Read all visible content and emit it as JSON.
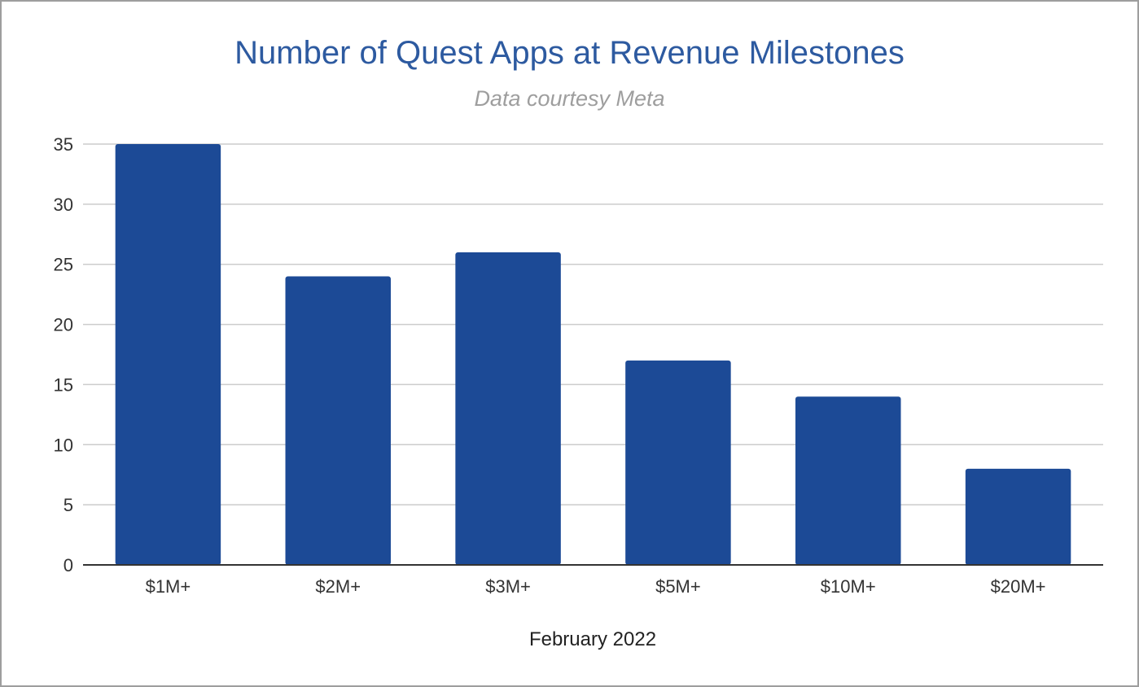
{
  "chart_data": {
    "type": "bar",
    "title": "Number of Quest Apps at Revenue Milestones",
    "subtitle": "Data courtesy Meta",
    "xlabel": "February 2022",
    "ylabel": "",
    "categories": [
      "$1M+",
      "$2M+",
      "$3M+",
      "$5M+",
      "$10M+",
      "$20M+"
    ],
    "values": [
      35,
      24,
      26,
      17,
      14,
      8
    ],
    "ylim": [
      0,
      35
    ],
    "yticks": [
      0,
      5,
      10,
      15,
      20,
      25,
      30,
      35
    ],
    "grid": true,
    "legend": "none",
    "bar_color": "#1c4a96",
    "title_color": "#2d5aa0",
    "subtitle_color": "#9e9e9e"
  }
}
